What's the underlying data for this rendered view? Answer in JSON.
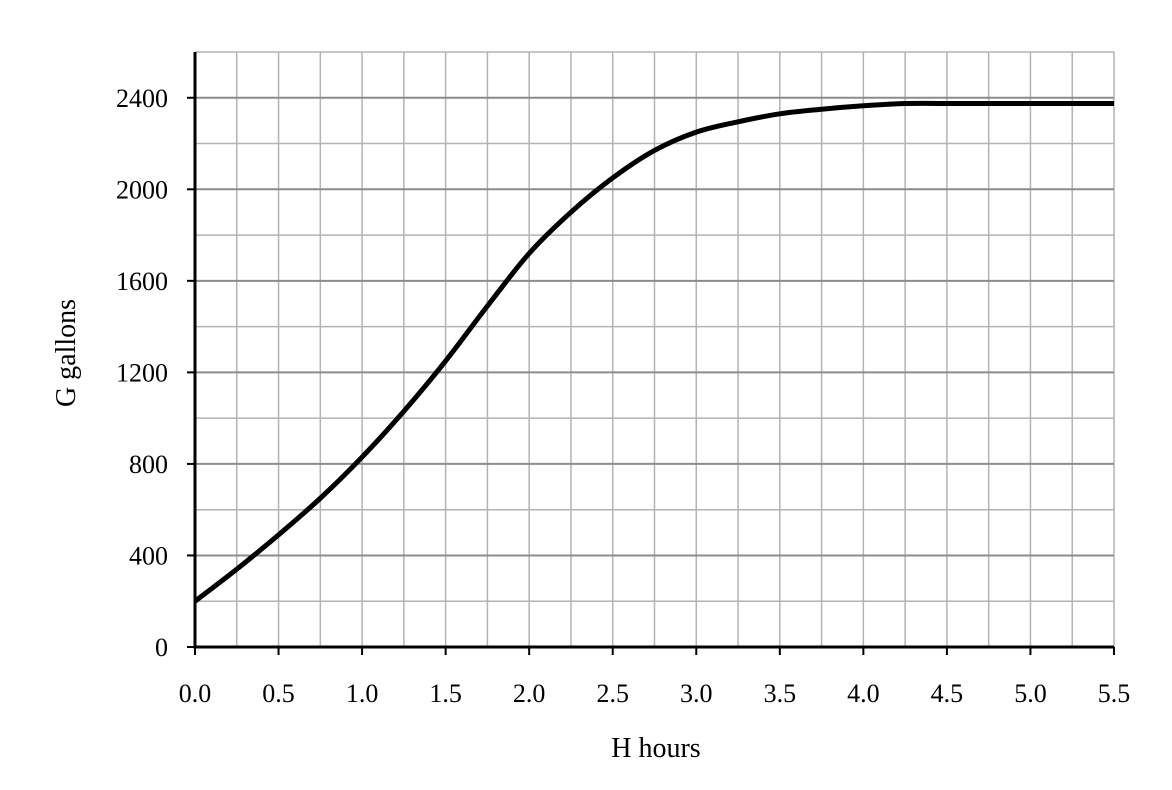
{
  "chart_data": {
    "type": "line",
    "title": "",
    "xlabel": "H hours",
    "ylabel": "G gallons",
    "xlim": [
      0,
      5.5
    ],
    "ylim": [
      0,
      2600
    ],
    "x_ticks": [
      0.0,
      0.5,
      1.0,
      1.5,
      2.0,
      2.5,
      3.0,
      3.5,
      4.0,
      4.5,
      5.0,
      5.5
    ],
    "x_tick_labels": [
      "0.0",
      "0.5",
      "1.0",
      "1.5",
      "2.0",
      "2.5",
      "3.0",
      "3.5",
      "4.0",
      "4.5",
      "5.0",
      "5.5"
    ],
    "x_minor_step": 0.25,
    "y_ticks": [
      0,
      400,
      800,
      1200,
      1600,
      2000,
      2400
    ],
    "y_tick_labels": [
      "0",
      "400",
      "800",
      "1200",
      "1600",
      "2000",
      "2400"
    ],
    "y_minor_step": 200,
    "grid": true,
    "line_color": "#000000",
    "grid_color": "#b3b3b3",
    "series": [
      {
        "x": [
          0.0,
          0.25,
          0.5,
          0.75,
          1.0,
          1.25,
          1.5,
          1.75,
          2.0,
          2.25,
          2.5,
          2.75,
          3.0,
          3.25,
          3.5,
          3.75,
          4.0,
          4.25,
          4.5,
          5.0,
          5.5
        ],
        "values": [
          200,
          340,
          490,
          650,
          830,
          1030,
          1250,
          1490,
          1720,
          1900,
          2050,
          2170,
          2250,
          2295,
          2330,
          2350,
          2365,
          2375,
          2375,
          2375,
          2375
        ]
      }
    ]
  }
}
